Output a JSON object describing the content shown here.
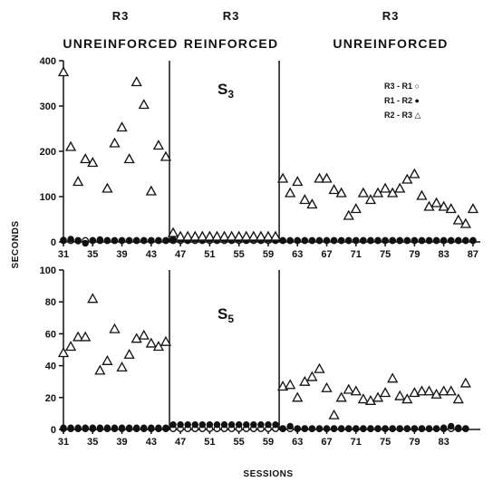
{
  "phase_headers": [
    {
      "name": "R3",
      "label": "UNREINFORCED"
    },
    {
      "name": "R3",
      "label": "REINFORCED"
    },
    {
      "name": "R3",
      "label": "UNREINFORCED"
    }
  ],
  "xlabel": "SESSIONS",
  "ylabel": "SECONDS",
  "legend": [
    "R3 - R1 ○",
    "R1 - R2 ●",
    "R2 - R3 △"
  ],
  "colors": {
    "ink": "#111111"
  },
  "chart_data": [
    {
      "type": "scatter",
      "panel": "S3",
      "xlim": [
        31,
        88
      ],
      "ylim": [
        0,
        400
      ],
      "yticks": [
        0,
        100,
        200,
        300,
        400
      ],
      "xticks": [
        31,
        35,
        39,
        43,
        47,
        51,
        55,
        59,
        63,
        67,
        71,
        75,
        79,
        83,
        87
      ],
      "phase_boundaries": [
        45.5,
        60.5
      ],
      "grid": false,
      "legend_position": "top-right",
      "series": [
        {
          "name": "R3 - R1",
          "marker": "open-circle",
          "x": [
            31,
            32,
            33,
            34,
            35,
            36,
            37,
            38,
            39,
            40,
            41,
            42,
            43,
            44,
            45,
            46,
            47,
            48,
            49,
            50,
            51,
            52,
            53,
            54,
            55,
            56,
            57,
            58,
            59,
            60,
            61,
            62,
            63,
            64,
            65,
            66,
            67,
            68,
            69,
            70,
            71,
            72,
            73,
            74,
            75,
            76,
            77,
            78,
            79,
            80,
            81,
            82,
            83,
            84,
            85,
            86,
            87
          ],
          "y": [
            3,
            3,
            3,
            3,
            3,
            3,
            3,
            3,
            3,
            3,
            3,
            3,
            3,
            3,
            3,
            3,
            3,
            3,
            3,
            3,
            3,
            3,
            3,
            3,
            3,
            3,
            3,
            3,
            3,
            3,
            3,
            3,
            3,
            3,
            3,
            3,
            3,
            3,
            3,
            3,
            3,
            3,
            3,
            3,
            3,
            3,
            3,
            3,
            3,
            3,
            3,
            3,
            3,
            3,
            3,
            3,
            3
          ]
        },
        {
          "name": "R1 - R2",
          "marker": "filled-circle",
          "x": [
            31,
            32,
            33,
            34,
            35,
            36,
            37,
            38,
            39,
            40,
            41,
            42,
            43,
            44,
            45,
            46,
            47,
            48,
            49,
            50,
            51,
            52,
            53,
            54,
            55,
            56,
            57,
            58,
            59,
            60,
            61,
            62,
            63,
            64,
            65,
            66,
            67,
            68,
            69,
            70,
            71,
            72,
            73,
            74,
            75,
            76,
            77,
            78,
            79,
            80,
            81,
            82,
            83,
            84,
            85,
            86,
            87
          ],
          "y": [
            4,
            6,
            2,
            -3,
            3,
            5,
            3,
            3,
            3,
            3,
            3,
            3,
            3,
            3,
            3,
            5,
            6,
            5,
            6,
            5,
            6,
            5,
            6,
            5,
            6,
            5,
            6,
            5,
            6,
            5,
            3,
            3,
            3,
            3,
            3,
            3,
            3,
            3,
            3,
            3,
            3,
            3,
            3,
            3,
            3,
            3,
            3,
            3,
            3,
            3,
            3,
            3,
            3,
            3,
            3,
            3,
            3
          ]
        },
        {
          "name": "R2 - R3",
          "marker": "open-triangle",
          "x": [
            31,
            32,
            33,
            34,
            35,
            37,
            38,
            39,
            40,
            41,
            42,
            43,
            44,
            45,
            46,
            47,
            48,
            49,
            50,
            51,
            52,
            53,
            54,
            55,
            56,
            57,
            58,
            59,
            60,
            61,
            62,
            63,
            64,
            65,
            66,
            67,
            68,
            69,
            70,
            71,
            72,
            73,
            74,
            75,
            76,
            77,
            78,
            79,
            80,
            81,
            82,
            83,
            84,
            85,
            86,
            87
          ],
          "y": [
            375,
            210,
            133,
            183,
            175,
            118,
            218,
            253,
            183,
            353,
            303,
            112,
            213,
            188,
            20,
            12,
            12,
            12,
            12,
            12,
            12,
            12,
            12,
            12,
            12,
            12,
            12,
            12,
            12,
            140,
            108,
            133,
            93,
            83,
            140,
            140,
            115,
            108,
            58,
            73,
            108,
            93,
            108,
            118,
            108,
            118,
            138,
            150,
            102,
            78,
            86,
            78,
            73,
            48,
            40,
            73
          ]
        }
      ]
    },
    {
      "type": "scatter",
      "panel": "S5",
      "xlim": [
        31,
        88
      ],
      "ylim": [
        0,
        100
      ],
      "yticks": [
        0,
        20,
        40,
        60,
        80,
        100
      ],
      "xticks": [
        31,
        35,
        39,
        43,
        47,
        51,
        55,
        59,
        63,
        67,
        71,
        75,
        79,
        83
      ],
      "phase_boundaries": [
        45.5,
        60.5
      ],
      "grid": false,
      "series": [
        {
          "name": "R3 - R1",
          "marker": "open-circle",
          "x": [
            31,
            32,
            33,
            34,
            35,
            36,
            37,
            38,
            39,
            40,
            41,
            42,
            43,
            44,
            45,
            46,
            47,
            48,
            49,
            50,
            51,
            52,
            53,
            54,
            55,
            56,
            57,
            58,
            59,
            60,
            61,
            62,
            63,
            64,
            65,
            66,
            67,
            68,
            69,
            70,
            71,
            72,
            73,
            74,
            75,
            76,
            77,
            78,
            79,
            80,
            81,
            82,
            83,
            84,
            85,
            86
          ],
          "y": [
            0.5,
            0.5,
            0.5,
            0.5,
            0.5,
            0.5,
            0.5,
            0.5,
            0.5,
            0.5,
            0.5,
            0.5,
            0.5,
            0.5,
            0.5,
            0.5,
            0.5,
            0.5,
            0.5,
            0.5,
            0.5,
            0.5,
            0.5,
            0.5,
            0.5,
            0.5,
            0.5,
            0.5,
            0.5,
            0.5,
            0.5,
            0.5,
            0.5,
            0.5,
            0.5,
            0.5,
            0.5,
            0.5,
            0.5,
            0.5,
            0.5,
            0.5,
            0.5,
            0.5,
            0.5,
            0.5,
            0.5,
            0.5,
            0.5,
            0.5,
            0.5,
            0.5,
            0.5,
            0.5,
            0.5,
            0.5
          ]
        },
        {
          "name": "R1 - R2",
          "marker": "filled-circle",
          "x": [
            31,
            32,
            33,
            34,
            35,
            36,
            37,
            38,
            39,
            40,
            41,
            42,
            43,
            44,
            45,
            46,
            47,
            48,
            49,
            50,
            51,
            52,
            53,
            54,
            55,
            56,
            57,
            58,
            59,
            60,
            61,
            62,
            63,
            64,
            65,
            66,
            67,
            68,
            69,
            70,
            71,
            72,
            73,
            74,
            75,
            76,
            77,
            78,
            79,
            80,
            81,
            82,
            83,
            84,
            85,
            86
          ],
          "y": [
            1,
            1,
            1,
            1,
            1,
            1,
            1,
            1,
            1,
            1,
            1,
            1,
            1,
            1,
            1,
            3,
            3,
            3,
            3,
            3,
            3,
            3,
            3,
            3,
            3,
            3,
            3,
            3,
            3,
            3,
            0.5,
            2,
            0.5,
            0.5,
            0.5,
            0.5,
            0.5,
            0.5,
            0.5,
            0.5,
            0.5,
            0.5,
            0.5,
            0.5,
            0.5,
            0.5,
            0.5,
            0.5,
            0.5,
            0.5,
            0.5,
            0.5,
            1,
            2,
            1,
            0.5
          ]
        },
        {
          "name": "R2 - R3",
          "marker": "open-triangle",
          "x": [
            31,
            32,
            33,
            34,
            35,
            36,
            37,
            38,
            39,
            40,
            41,
            42,
            43,
            44,
            45,
            61,
            62,
            63,
            64,
            65,
            66,
            67,
            68,
            69,
            70,
            71,
            72,
            73,
            74,
            75,
            76,
            77,
            78,
            79,
            80,
            81,
            82,
            83,
            84,
            85,
            86
          ],
          "y": [
            48,
            52,
            58,
            58,
            82,
            37,
            43,
            63,
            39,
            47,
            57,
            59,
            54,
            52,
            55,
            27,
            28,
            20,
            30,
            33,
            38,
            26,
            9,
            20,
            25,
            24,
            19,
            18,
            20,
            23,
            32,
            21,
            19,
            23,
            24,
            24,
            22,
            24,
            24,
            19,
            29
          ]
        }
      ]
    }
  ]
}
